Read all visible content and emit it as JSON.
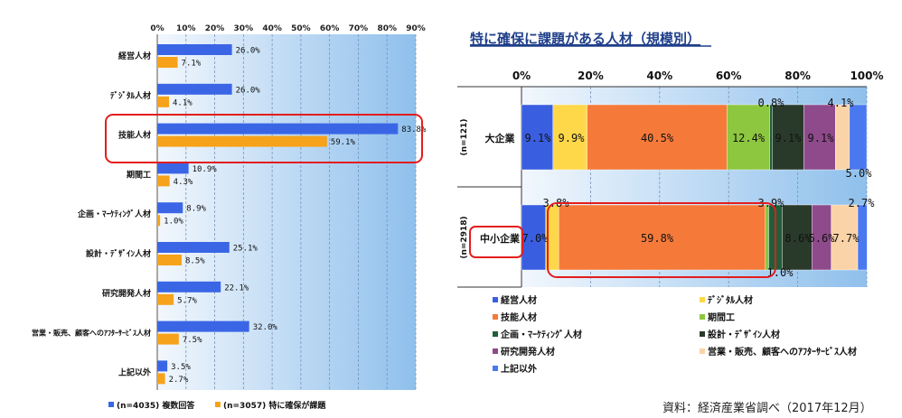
{
  "chart_data": [
    {
      "type": "bar",
      "orientation": "horizontal",
      "categories": [
        "経営人材",
        "ﾃﾞｼﾞﾀﾙ人材",
        "技能人材",
        "期間工",
        "企画・ﾏｰｹﾃｨﾝｸﾞ人材",
        "設計・ﾃﾞｻﾞｲﾝ人材",
        "研究開発人材",
        "営業・販売、顧客へのｱﾌﾀｰｻｰﾋﾞｽ人材",
        "上記以外"
      ],
      "series": [
        {
          "name": "(n=4035) 複数回答",
          "values": [
            26.0,
            26.0,
            83.8,
            10.9,
            8.9,
            25.1,
            22.1,
            32.0,
            3.5
          ],
          "color": "#3a66e6"
        },
        {
          "name": "(n=3057) 特に確保が課題",
          "values": [
            7.1,
            4.1,
            59.1,
            4.3,
            1.0,
            8.5,
            5.7,
            7.5,
            2.7
          ],
          "color": "#f7a21b"
        }
      ],
      "value_labels": [
        [
          "26.0%",
          "26.0%",
          "83.8%",
          "10.9%",
          "8.9%",
          "25.1%",
          "22.1%",
          "32.0%",
          "3.5%"
        ],
        [
          "7.1%",
          "4.1%",
          "59.1%",
          "4.3%",
          "1.0%",
          "8.5%",
          "5.7%",
          "7.5%",
          "2.7%"
        ]
      ],
      "xlim": [
        0,
        90
      ],
      "ticks": [
        "0%",
        "10%",
        "20%",
        "30%",
        "40%",
        "50%",
        "60%",
        "70%",
        "80%",
        "90%"
      ],
      "legend": [
        "(n=4035) 複数回答",
        "(n=3057) 特に確保が課題"
      ],
      "legend_position": "bottom",
      "highlight": "技能人材"
    },
    {
      "type": "bar",
      "orientation": "horizontal",
      "stacked": true,
      "title": "特に確保に課題がある人材（規模別）",
      "categories": [
        "大企業",
        "中小企業"
      ],
      "group_n": [
        "(n=121)",
        "(n=2918)"
      ],
      "series": [
        {
          "name": "経営人材",
          "values": [
            9.1,
            7.0
          ],
          "color": "#3a5ee0"
        },
        {
          "name": "ﾃﾞｼﾞﾀﾙ人材",
          "values": [
            9.9,
            3.8
          ],
          "color": "#ffd84a"
        },
        {
          "name": "技能人材",
          "values": [
            40.5,
            59.8
          ],
          "color": "#f57a3a"
        },
        {
          "name": "期間工",
          "values": [
            12.4,
            1.0
          ],
          "color": "#8dc63f"
        },
        {
          "name": "企画・ﾏｰｹﾃｨﾝｸﾞ人材",
          "values": [
            0.8,
            3.9
          ],
          "color": "#1f5e3a"
        },
        {
          "name": "設計・ﾃﾞｻﾞｲﾝ人材",
          "values": [
            9.1,
            8.6
          ],
          "color": "#2a3a2a"
        },
        {
          "name": "研究開発人材",
          "values": [
            9.1,
            5.6
          ],
          "color": "#8e4a8a"
        },
        {
          "name": "営業・販売、顧客へのｱﾌﾀｰｻｰﾋﾞｽ人材",
          "values": [
            4.1,
            7.7
          ],
          "color": "#fbd3a8"
        },
        {
          "name": "上記以外",
          "values": [
            5.0,
            2.7
          ],
          "color": "#4a78f0"
        }
      ],
      "value_labels": [
        [
          "9.1%",
          "9.9%",
          "40.5%",
          "12.4%",
          "0.8%",
          "9.1%",
          "9.1%",
          "4.1%",
          "5.0%"
        ],
        [
          "7.0%",
          "3.8%",
          "59.8%",
          "1.0%",
          "3.9%",
          "8.6%",
          "5.6%",
          "7.7%",
          "2.7%"
        ]
      ],
      "xlim": [
        0,
        100
      ],
      "ticks": [
        "0%",
        "20%",
        "40%",
        "60%",
        "80%",
        "100%"
      ],
      "legend_position": "bottom",
      "highlight": [
        "中小企業",
        "技能人材"
      ]
    }
  ],
  "source_note": "資料：経済産業省調べ（2017年12月）"
}
